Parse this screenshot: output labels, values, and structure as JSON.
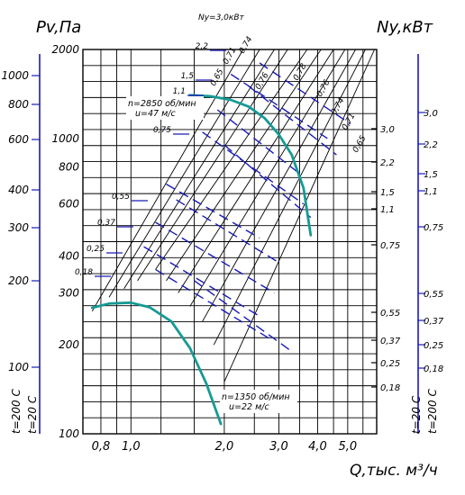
{
  "chart_data": {
    "type": "line",
    "title": "",
    "xlabel": "Q,тыс. м³/ч",
    "ylabel_left": "Pv,Па",
    "ylabel_right": "Ny,кВт",
    "x_ticks": [
      "0,8",
      "1,0",
      "2,0",
      "3,0",
      "4,0",
      "5,0"
    ],
    "y_ticks_inner": [
      "100",
      "200",
      "300",
      "400",
      "600",
      "800",
      "1000",
      "2000"
    ],
    "y_ticks_outer": [
      "100",
      "200",
      "300",
      "400",
      "600",
      "800",
      "1000"
    ],
    "right_ticks_inner": [
      "3,0",
      "2,2",
      "1,5",
      "1,1",
      "0,75",
      "0,55",
      "0,37",
      "0,25",
      "0,18"
    ],
    "right_ticks_outer": [
      "3,0",
      "2,2",
      "1,5",
      "1,1",
      "0,75",
      "0,55",
      "0,37",
      "0,25",
      "0,18"
    ],
    "temp_labels_left": [
      "t=200 С",
      "t=20 С"
    ],
    "temp_labels_right": [
      "t=20 С",
      "t=200 С"
    ],
    "efficiency_labels": [
      "0,65",
      "0,71",
      "0,74",
      "0,76",
      "0,78",
      "0,76",
      "0,74",
      "0,71",
      "0,65"
    ],
    "upper_power_labels": [
      "Ny=3,0кВт",
      "2,2",
      "1,5",
      "1,1",
      "0,75",
      "0,55",
      "0,37",
      "0,25",
      "0,18"
    ],
    "annotations": {
      "upper": [
        "n=2850 об/мин",
        "u=47 м/с"
      ],
      "lower": [
        "n=1350 об/мин",
        "u=22 м/с"
      ]
    },
    "series": [
      {
        "name": "n=2850 об/мин",
        "x": [
          1.55,
          1.8,
          2.1,
          2.4,
          2.7,
          3.0,
          3.3,
          3.6,
          3.8
        ],
        "y": [
          1400,
          1390,
          1350,
          1280,
          1170,
          1030,
          880,
          680,
          470
        ]
      },
      {
        "name": "n=1350 об/мин",
        "x": [
          0.75,
          0.85,
          1.0,
          1.15,
          1.35,
          1.55,
          1.75,
          1.95
        ],
        "y": [
          267,
          276,
          278,
          268,
          240,
          195,
          148,
          108
        ]
      }
    ],
    "colors": {
      "axis": "#1a1ab4",
      "grid": "#000000",
      "curve": "#169a94"
    },
    "x_scale": "log",
    "y_scale": "log",
    "grid": true
  }
}
